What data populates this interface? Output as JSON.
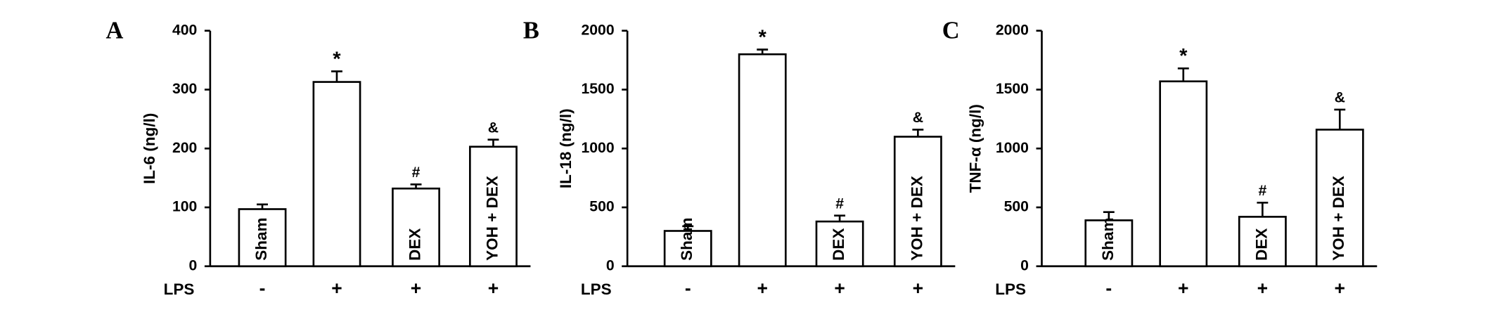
{
  "chart_data": [
    {
      "type": "bar",
      "panel": "A",
      "y_label": "IL-6 (ng/l)",
      "categories": [
        "Sham",
        null,
        "DEX",
        "YOH + DEX"
      ],
      "values": [
        97,
        313,
        132,
        203
      ],
      "errors": [
        8,
        18,
        7,
        12
      ],
      "annotations": [
        null,
        "*",
        "#",
        "&"
      ],
      "row_label": "LPS",
      "row_values": [
        "-",
        "+",
        "+",
        "+"
      ],
      "ylim": [
        0,
        400
      ],
      "yticks": [
        0,
        100,
        200,
        300,
        400
      ],
      "color": "#ffffff"
    },
    {
      "type": "bar",
      "panel": "B",
      "y_label": "IL-18 (ng/l)",
      "categories": [
        "Sham",
        null,
        "DEX",
        "YOH + DEX"
      ],
      "values": [
        300,
        1800,
        380,
        1100
      ],
      "errors": [
        40,
        40,
        50,
        60
      ],
      "annotations": [
        null,
        "*",
        "#",
        "&"
      ],
      "row_label": "LPS",
      "row_values": [
        "-",
        "+",
        "+",
        "+"
      ],
      "ylim": [
        0,
        2000
      ],
      "yticks": [
        0,
        500,
        1000,
        1500,
        2000
      ],
      "color": "#ffffff"
    },
    {
      "type": "bar",
      "panel": "C",
      "y_label": "TNF-α (ng/l)",
      "categories": [
        "Sham",
        null,
        "DEX",
        "YOH + DEX"
      ],
      "values": [
        390,
        1570,
        420,
        1160
      ],
      "errors": [
        70,
        110,
        120,
        170
      ],
      "annotations": [
        null,
        "*",
        "#",
        "&"
      ],
      "row_label": "LPS",
      "row_values": [
        "-",
        "+",
        "+",
        "+"
      ],
      "ylim": [
        0,
        2000
      ],
      "yticks": [
        0,
        500,
        1000,
        1500,
        2000
      ],
      "color": "#ffffff"
    }
  ]
}
